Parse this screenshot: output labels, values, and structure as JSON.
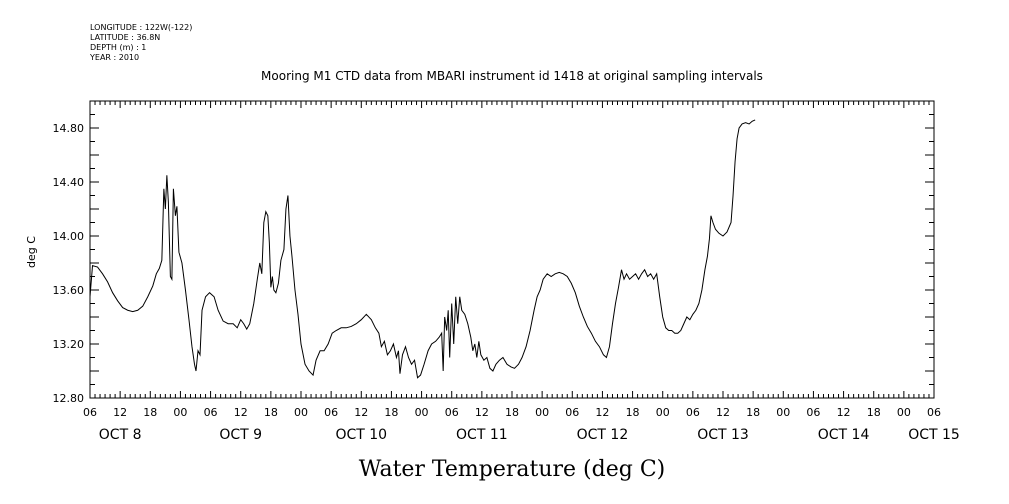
{
  "metadata": {
    "longitude": "LONGITUDE : 122W(-122)",
    "latitude": "LATITUDE : 36.8N",
    "depth": "DEPTH (m) : 1",
    "year": "YEAR : 2010"
  },
  "chart_data": {
    "type": "line",
    "title": "Mooring M1 CTD data from MBARI instrument id 1418 at original sampling intervals",
    "xlabel": "Water Temperature (deg C)",
    "ylabel": "deg C",
    "ylim": [
      12.8,
      15.0
    ],
    "xlim_hours": [
      0,
      168
    ],
    "y_ticks": [
      {
        "value": 12.8,
        "label": "12.80"
      },
      {
        "value": 13.2,
        "label": "13.20"
      },
      {
        "value": 13.6,
        "label": "13.60"
      },
      {
        "value": 14.0,
        "label": "14.00"
      },
      {
        "value": 14.4,
        "label": "14.40"
      },
      {
        "value": 14.8,
        "label": "14.80"
      }
    ],
    "x_tick_labels": [
      "06",
      "12",
      "18",
      "00",
      "06",
      "12",
      "18",
      "00",
      "06",
      "12",
      "18",
      "00",
      "06",
      "12",
      "18",
      "00",
      "06",
      "12",
      "18",
      "00",
      "06",
      "12",
      "18",
      "00",
      "06",
      "12",
      "18",
      "00",
      "06"
    ],
    "day_labels": [
      {
        "label": "OCT  8",
        "at_hour": 6
      },
      {
        "label": "OCT  9",
        "at_hour": 30
      },
      {
        "label": "OCT 10",
        "at_hour": 54
      },
      {
        "label": "OCT 11",
        "at_hour": 78
      },
      {
        "label": "OCT 12",
        "at_hour": 102
      },
      {
        "label": "OCT 13",
        "at_hour": 126
      },
      {
        "label": "OCT 14",
        "at_hour": 150
      },
      {
        "label": "OCT 15",
        "at_hour": 168
      }
    ],
    "series": [
      {
        "points": [
          [
            0.0,
            13.55
          ],
          [
            0.5,
            13.78
          ],
          [
            1.5,
            13.77
          ],
          [
            2.5,
            13.72
          ],
          [
            3.5,
            13.66
          ],
          [
            4.5,
            13.58
          ],
          [
            5.5,
            13.52
          ],
          [
            6.5,
            13.47
          ],
          [
            7.5,
            13.45
          ],
          [
            8.5,
            13.44
          ],
          [
            9.5,
            13.45
          ],
          [
            10.5,
            13.48
          ],
          [
            11.5,
            13.55
          ],
          [
            12.5,
            13.63
          ],
          [
            13.2,
            13.72
          ],
          [
            13.8,
            13.76
          ],
          [
            14.3,
            13.82
          ],
          [
            14.7,
            14.35
          ],
          [
            15.0,
            14.2
          ],
          [
            15.3,
            14.45
          ],
          [
            15.6,
            14.25
          ],
          [
            16.0,
            13.7
          ],
          [
            16.3,
            13.68
          ],
          [
            16.6,
            14.35
          ],
          [
            17.0,
            14.15
          ],
          [
            17.3,
            14.22
          ],
          [
            17.7,
            13.88
          ],
          [
            18.3,
            13.8
          ],
          [
            19.0,
            13.6
          ],
          [
            19.7,
            13.38
          ],
          [
            20.3,
            13.18
          ],
          [
            20.8,
            13.05
          ],
          [
            21.1,
            13.0
          ],
          [
            21.5,
            13.15
          ],
          [
            21.9,
            13.12
          ],
          [
            22.3,
            13.45
          ],
          [
            23.0,
            13.55
          ],
          [
            23.8,
            13.58
          ],
          [
            24.7,
            13.55
          ],
          [
            25.5,
            13.45
          ],
          [
            26.5,
            13.37
          ],
          [
            27.5,
            13.35
          ],
          [
            28.5,
            13.35
          ],
          [
            29.3,
            13.32
          ],
          [
            30.0,
            13.38
          ],
          [
            30.6,
            13.35
          ],
          [
            31.2,
            13.31
          ],
          [
            31.8,
            13.35
          ],
          [
            32.6,
            13.5
          ],
          [
            33.3,
            13.68
          ],
          [
            33.8,
            13.8
          ],
          [
            34.2,
            13.72
          ],
          [
            34.6,
            14.1
          ],
          [
            35.0,
            14.18
          ],
          [
            35.4,
            14.15
          ],
          [
            35.7,
            13.95
          ],
          [
            36.0,
            13.62
          ],
          [
            36.3,
            13.7
          ],
          [
            36.6,
            13.6
          ],
          [
            37.0,
            13.58
          ],
          [
            37.5,
            13.65
          ],
          [
            38.0,
            13.82
          ],
          [
            38.6,
            13.9
          ],
          [
            39.0,
            14.2
          ],
          [
            39.4,
            14.3
          ],
          [
            39.8,
            14.0
          ],
          [
            40.2,
            13.85
          ],
          [
            40.8,
            13.6
          ],
          [
            41.4,
            13.42
          ],
          [
            42.0,
            13.2
          ],
          [
            42.8,
            13.05
          ],
          [
            43.6,
            13.0
          ],
          [
            44.4,
            12.97
          ],
          [
            45.0,
            13.08
          ],
          [
            45.8,
            13.15
          ],
          [
            46.6,
            13.15
          ],
          [
            47.4,
            13.2
          ],
          [
            48.2,
            13.28
          ],
          [
            49.0,
            13.3
          ],
          [
            50.0,
            13.32
          ],
          [
            51.0,
            13.32
          ],
          [
            52.0,
            13.33
          ],
          [
            53.0,
            13.35
          ],
          [
            54.0,
            13.38
          ],
          [
            55.0,
            13.42
          ],
          [
            56.0,
            13.38
          ],
          [
            56.8,
            13.32
          ],
          [
            57.5,
            13.28
          ],
          [
            58.0,
            13.18
          ],
          [
            58.6,
            13.22
          ],
          [
            59.2,
            13.12
          ],
          [
            59.8,
            13.15
          ],
          [
            60.4,
            13.2
          ],
          [
            61.0,
            13.1
          ],
          [
            61.4,
            13.15
          ],
          [
            61.7,
            12.98
          ],
          [
            62.2,
            13.12
          ],
          [
            62.8,
            13.18
          ],
          [
            63.4,
            13.1
          ],
          [
            64.0,
            13.05
          ],
          [
            64.6,
            13.08
          ],
          [
            65.2,
            12.95
          ],
          [
            65.8,
            12.97
          ],
          [
            66.5,
            13.05
          ],
          [
            67.3,
            13.15
          ],
          [
            68.0,
            13.2
          ],
          [
            68.8,
            13.22
          ],
          [
            69.5,
            13.25
          ],
          [
            70.0,
            13.28
          ],
          [
            70.3,
            13.0
          ],
          [
            70.6,
            13.4
          ],
          [
            71.0,
            13.3
          ],
          [
            71.3,
            13.45
          ],
          [
            71.6,
            13.1
          ],
          [
            72.0,
            13.5
          ],
          [
            72.4,
            13.2
          ],
          [
            72.8,
            13.55
          ],
          [
            73.2,
            13.35
          ],
          [
            73.6,
            13.55
          ],
          [
            74.0,
            13.45
          ],
          [
            74.6,
            13.42
          ],
          [
            75.2,
            13.35
          ],
          [
            75.8,
            13.25
          ],
          [
            76.2,
            13.15
          ],
          [
            76.6,
            13.2
          ],
          [
            77.0,
            13.1
          ],
          [
            77.4,
            13.22
          ],
          [
            77.8,
            13.12
          ],
          [
            78.4,
            13.08
          ],
          [
            79.0,
            13.1
          ],
          [
            79.6,
            13.02
          ],
          [
            80.2,
            13.0
          ],
          [
            80.8,
            13.05
          ],
          [
            81.5,
            13.08
          ],
          [
            82.2,
            13.1
          ],
          [
            83.0,
            13.05
          ],
          [
            83.8,
            13.03
          ],
          [
            84.5,
            13.02
          ],
          [
            85.3,
            13.05
          ],
          [
            86.0,
            13.1
          ],
          [
            86.8,
            13.18
          ],
          [
            87.6,
            13.3
          ],
          [
            88.4,
            13.45
          ],
          [
            89.0,
            13.55
          ],
          [
            89.6,
            13.6
          ],
          [
            90.2,
            13.68
          ],
          [
            91.0,
            13.72
          ],
          [
            91.8,
            13.7
          ],
          [
            92.6,
            13.72
          ],
          [
            93.4,
            13.73
          ],
          [
            94.2,
            13.72
          ],
          [
            95.0,
            13.7
          ],
          [
            95.8,
            13.65
          ],
          [
            96.6,
            13.58
          ],
          [
            97.4,
            13.48
          ],
          [
            98.2,
            13.4
          ],
          [
            99.0,
            13.33
          ],
          [
            99.8,
            13.28
          ],
          [
            100.6,
            13.22
          ],
          [
            101.4,
            13.18
          ],
          [
            102.2,
            13.12
          ],
          [
            102.8,
            13.1
          ],
          [
            103.4,
            13.18
          ],
          [
            104.0,
            13.35
          ],
          [
            104.6,
            13.5
          ],
          [
            105.2,
            13.62
          ],
          [
            105.8,
            13.75
          ],
          [
            106.3,
            13.68
          ],
          [
            106.8,
            13.72
          ],
          [
            107.4,
            13.68
          ],
          [
            108.0,
            13.7
          ],
          [
            108.6,
            13.72
          ],
          [
            109.2,
            13.68
          ],
          [
            109.8,
            13.72
          ],
          [
            110.4,
            13.75
          ],
          [
            111.0,
            13.7
          ],
          [
            111.6,
            13.72
          ],
          [
            112.2,
            13.68
          ],
          [
            112.8,
            13.72
          ],
          [
            113.4,
            13.55
          ],
          [
            114.0,
            13.4
          ],
          [
            114.6,
            13.32
          ],
          [
            115.2,
            13.3
          ],
          [
            115.8,
            13.3
          ],
          [
            116.4,
            13.28
          ],
          [
            117.0,
            13.28
          ],
          [
            117.6,
            13.3
          ],
          [
            118.2,
            13.35
          ],
          [
            118.8,
            13.4
          ],
          [
            119.4,
            13.38
          ],
          [
            120.0,
            13.42
          ],
          [
            120.6,
            13.45
          ],
          [
            121.2,
            13.5
          ],
          [
            121.8,
            13.6
          ],
          [
            122.4,
            13.75
          ],
          [
            122.9,
            13.85
          ],
          [
            123.3,
            13.98
          ],
          [
            123.6,
            14.15
          ],
          [
            124.0,
            14.1
          ],
          [
            124.5,
            14.05
          ],
          [
            125.2,
            14.02
          ],
          [
            126.0,
            14.0
          ],
          [
            126.8,
            14.03
          ],
          [
            127.6,
            14.1
          ],
          [
            128.0,
            14.3
          ],
          [
            128.4,
            14.55
          ],
          [
            128.8,
            14.72
          ],
          [
            129.2,
            14.8
          ],
          [
            129.8,
            14.83
          ],
          [
            130.5,
            14.84
          ],
          [
            131.2,
            14.83
          ],
          [
            131.8,
            14.85
          ],
          [
            132.4,
            14.86
          ]
        ]
      }
    ]
  }
}
